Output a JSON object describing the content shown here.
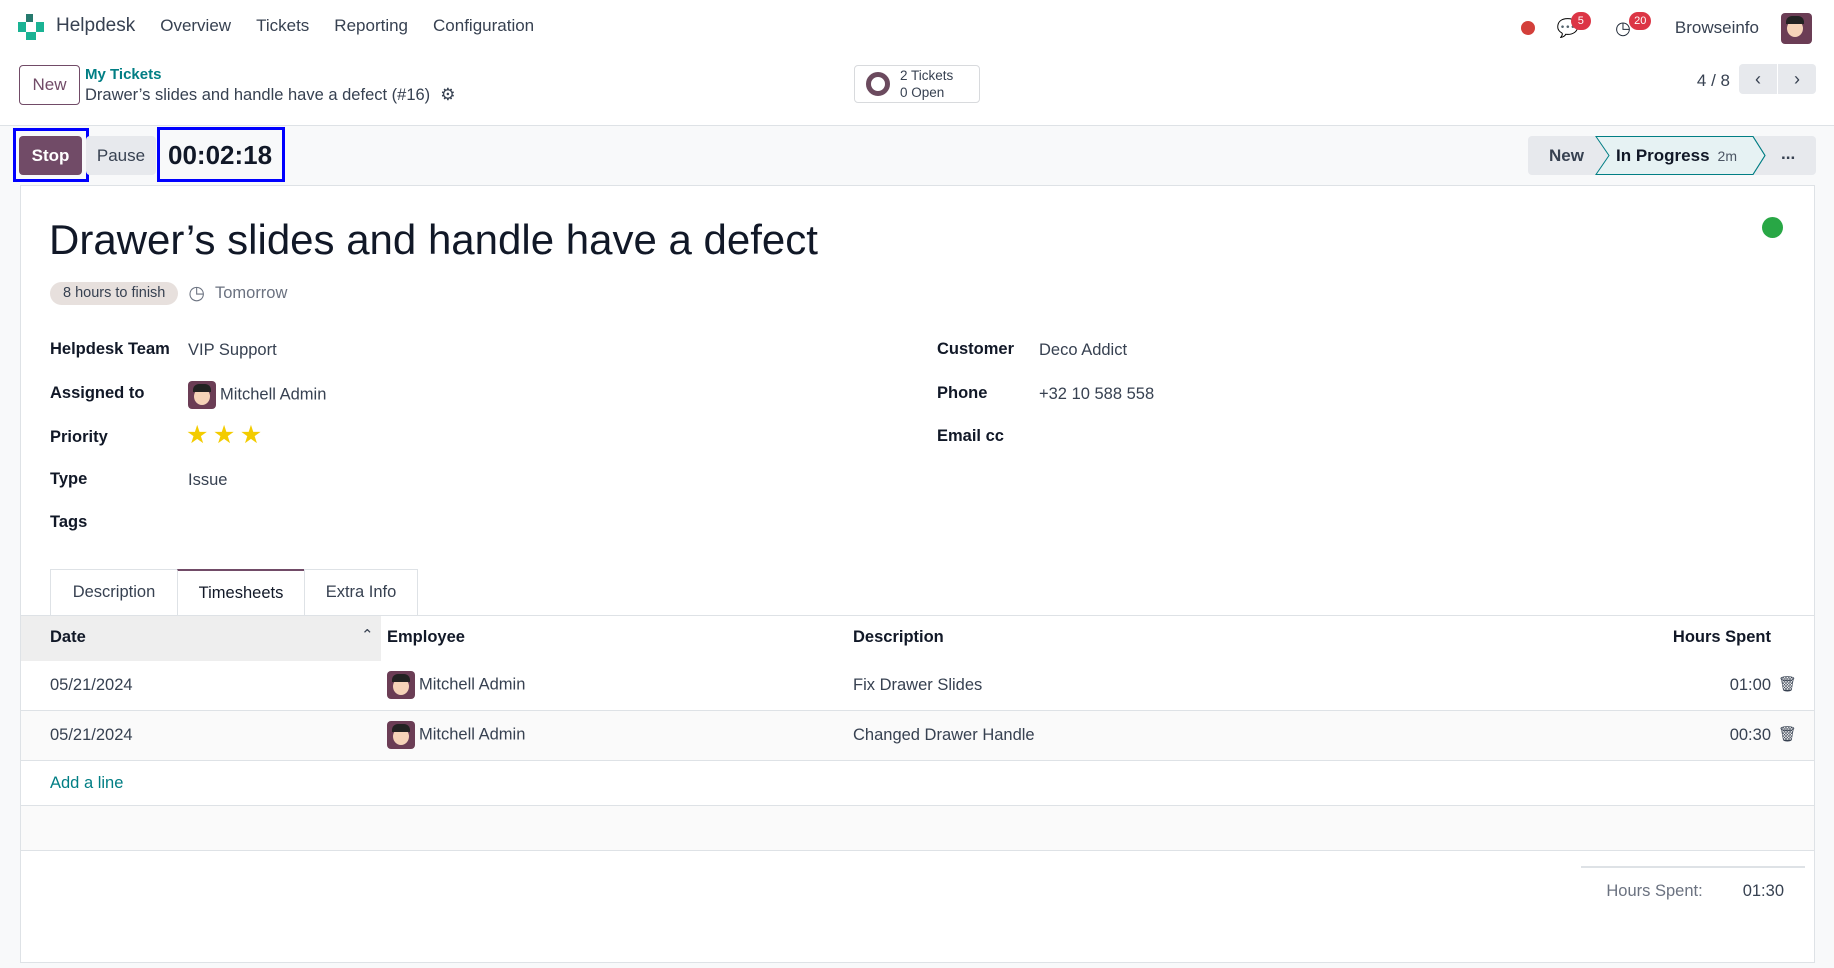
{
  "nav": {
    "app": "Helpdesk",
    "menu": [
      "Overview",
      "Tickets",
      "Reporting",
      "Configuration"
    ],
    "messages_count": "5",
    "activities_count": "20",
    "company": "Browseinfo"
  },
  "control": {
    "new_label": "New",
    "breadcrumb_parent": "My Tickets",
    "breadcrumb_current": "Drawer’s slides and handle have a defect (#16)",
    "stat_line1": "2 Tickets",
    "stat_line2": "0 Open",
    "pager": "4 / 8"
  },
  "actions": {
    "stop": "Stop",
    "pause": "Pause",
    "timer": "00:02:18"
  },
  "stages": {
    "new": "New",
    "current": "In Progress",
    "current_duration": "2m",
    "more": "..."
  },
  "ticket": {
    "title": "Drawer’s slides and handle have a defect",
    "sla_badge": "8 hours to finish",
    "deadline": "Tomorrow",
    "kanban_state_color": "#28a745",
    "fields_left": [
      {
        "label": "Helpdesk Team",
        "value": "VIP Support"
      },
      {
        "label": "Assigned to",
        "value": "Mitchell Admin"
      },
      {
        "label": "Priority",
        "value": ""
      },
      {
        "label": "Type",
        "value": "Issue"
      },
      {
        "label": "Tags",
        "value": ""
      }
    ],
    "priority_stars": 3,
    "fields_right": [
      {
        "label": "Customer",
        "value": "Deco Addict"
      },
      {
        "label": "Phone",
        "value": "+32 10 588 558"
      },
      {
        "label": "Email cc",
        "value": ""
      }
    ]
  },
  "tabs": [
    {
      "label": "Description"
    },
    {
      "label": "Timesheets",
      "active": true
    },
    {
      "label": "Extra Info"
    }
  ],
  "timesheets": {
    "headers": {
      "date": "Date",
      "employee": "Employee",
      "description": "Description",
      "hours": "Hours Spent"
    },
    "rows": [
      {
        "date": "05/21/2024",
        "employee": "Mitchell Admin",
        "description": "Fix Drawer Slides",
        "hours": "01:00"
      },
      {
        "date": "05/21/2024",
        "employee": "Mitchell Admin",
        "description": "Changed Drawer Handle",
        "hours": "00:30"
      }
    ],
    "add_line": "Add a line",
    "total_label": "Hours Spent:",
    "total_value": "01:30"
  },
  "colors": {
    "brand": "#714b67",
    "link": "#017e84",
    "star": "#f3cc00",
    "badge_red": "#dc3545"
  }
}
